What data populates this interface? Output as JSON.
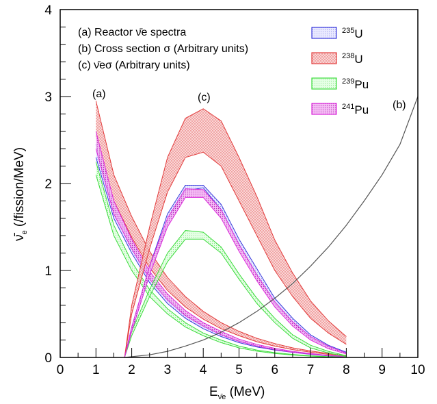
{
  "chart_data": {
    "type": "area",
    "xlim": [
      0,
      10
    ],
    "ylim": [
      0,
      4
    ],
    "x_ticks": [
      "0",
      "1",
      "2",
      "3",
      "4",
      "5",
      "6",
      "7",
      "8",
      "9",
      "10"
    ],
    "y_ticks": [
      "0",
      "1",
      "2",
      "3",
      "4"
    ],
    "xlabel": {
      "main": "E",
      "sub": "ν̄e",
      "unit": " (MeV)"
    },
    "ylabel": {
      "main": "ν̄",
      "sub": "e",
      "unit": " (/fission/MeV)"
    },
    "annotations": [
      "(a) Reactor ν̄e spectra",
      "(b) Cross section σ (Arbitrary units)",
      "(c) ν̄eσ (Arbitrary units)"
    ],
    "curve_labels": {
      "a": "(a)",
      "b": "(b)",
      "c": "(c)"
    },
    "colors": {
      "U235": "#3b3bdc",
      "U238": "#e23b3b",
      "Pu239": "#3bdc3b",
      "Pu241": "#dc2bdc",
      "cross_section": "#555555"
    },
    "legend_position": "top-right",
    "legend": [
      {
        "key": "U235",
        "mass": "235",
        "element": "U"
      },
      {
        "key": "U238",
        "mass": "238",
        "element": "U"
      },
      {
        "key": "Pu239",
        "mass": "239",
        "element": "Pu"
      },
      {
        "key": "Pu241",
        "mass": "241",
        "element": "Pu"
      }
    ],
    "spectra_x": [
      1.0,
      1.5,
      2.0,
      2.5,
      3.0,
      3.5,
      4.0,
      4.5,
      5.0,
      5.5,
      6.0,
      6.5,
      7.0,
      7.5,
      8.0
    ],
    "spectra": [
      {
        "key": "U235",
        "low": [
          2.3,
          1.6,
          1.2,
          0.86,
          0.62,
          0.45,
          0.33,
          0.24,
          0.17,
          0.12,
          0.085,
          0.058,
          0.035,
          0.018,
          0.008
        ],
        "high": [
          2.45,
          1.72,
          1.3,
          0.94,
          0.68,
          0.5,
          0.37,
          0.27,
          0.19,
          0.135,
          0.095,
          0.065,
          0.04,
          0.021,
          0.01
        ]
      },
      {
        "key": "U238",
        "low": [
          2.55,
          1.8,
          1.38,
          1.03,
          0.77,
          0.58,
          0.44,
          0.33,
          0.25,
          0.18,
          0.13,
          0.09,
          0.06,
          0.035,
          0.018
        ],
        "high": [
          2.95,
          2.1,
          1.62,
          1.22,
          0.92,
          0.7,
          0.53,
          0.4,
          0.3,
          0.22,
          0.16,
          0.11,
          0.075,
          0.045,
          0.025
        ]
      },
      {
        "key": "Pu239",
        "low": [
          2.1,
          1.4,
          1.0,
          0.7,
          0.5,
          0.35,
          0.25,
          0.17,
          0.11,
          0.072,
          0.045,
          0.028,
          0.015,
          0.007,
          0.003
        ],
        "high": [
          2.25,
          1.52,
          1.1,
          0.78,
          0.56,
          0.4,
          0.28,
          0.2,
          0.13,
          0.085,
          0.055,
          0.034,
          0.019,
          0.009,
          0.004
        ]
      },
      {
        "key": "Pu241",
        "low": [
          2.4,
          1.65,
          1.25,
          0.9,
          0.66,
          0.48,
          0.36,
          0.26,
          0.185,
          0.13,
          0.09,
          0.06,
          0.038,
          0.02,
          0.009
        ],
        "high": [
          2.6,
          1.8,
          1.36,
          0.99,
          0.73,
          0.54,
          0.4,
          0.3,
          0.21,
          0.15,
          0.105,
          0.07,
          0.045,
          0.024,
          0.012
        ]
      }
    ],
    "product_x": [
      1.8,
      2.0,
      2.5,
      3.0,
      3.5,
      4.0,
      4.5,
      5.0,
      5.5,
      6.0,
      6.5,
      7.0,
      7.5,
      8.0
    ],
    "products": [
      {
        "key": "U235",
        "low": [
          0.0,
          0.3,
          0.95,
          1.55,
          1.92,
          1.95,
          1.7,
          1.3,
          0.95,
          0.62,
          0.4,
          0.22,
          0.12,
          0.05
        ],
        "high": [
          0.0,
          0.35,
          1.05,
          1.65,
          1.98,
          1.98,
          1.76,
          1.36,
          1.02,
          0.68,
          0.45,
          0.26,
          0.14,
          0.06
        ]
      },
      {
        "key": "U238",
        "low": [
          0.0,
          0.5,
          1.25,
          1.9,
          2.3,
          2.36,
          2.2,
          1.8,
          1.4,
          1.0,
          0.7,
          0.45,
          0.28,
          0.15
        ],
        "high": [
          0.0,
          0.6,
          1.5,
          2.3,
          2.75,
          2.86,
          2.72,
          2.3,
          1.85,
          1.35,
          0.97,
          0.65,
          0.42,
          0.24
        ]
      },
      {
        "key": "Pu239",
        "low": [
          0.0,
          0.25,
          0.7,
          1.1,
          1.36,
          1.36,
          1.2,
          0.9,
          0.62,
          0.4,
          0.22,
          0.11,
          0.05,
          0.01
        ],
        "high": [
          0.0,
          0.3,
          0.78,
          1.2,
          1.46,
          1.44,
          1.27,
          0.96,
          0.68,
          0.45,
          0.26,
          0.14,
          0.07,
          0.02
        ]
      },
      {
        "key": "Pu241",
        "low": [
          0.0,
          0.3,
          0.95,
          1.5,
          1.84,
          1.84,
          1.6,
          1.22,
          0.88,
          0.58,
          0.36,
          0.2,
          0.1,
          0.04
        ],
        "high": [
          0.0,
          0.35,
          1.05,
          1.6,
          1.94,
          1.93,
          1.7,
          1.3,
          0.95,
          0.64,
          0.41,
          0.24,
          0.13,
          0.05
        ]
      }
    ],
    "cross_section_x": [
      1.8,
      2.5,
      3,
      3.5,
      4,
      4.5,
      5,
      5.5,
      6,
      6.5,
      7,
      7.5,
      8,
      8.5,
      9,
      9.5,
      10
    ],
    "cross_section_y": [
      0.0,
      0.03,
      0.07,
      0.13,
      0.2,
      0.29,
      0.4,
      0.53,
      0.68,
      0.85,
      1.05,
      1.27,
      1.52,
      1.8,
      2.1,
      2.45,
      3.0
    ]
  }
}
